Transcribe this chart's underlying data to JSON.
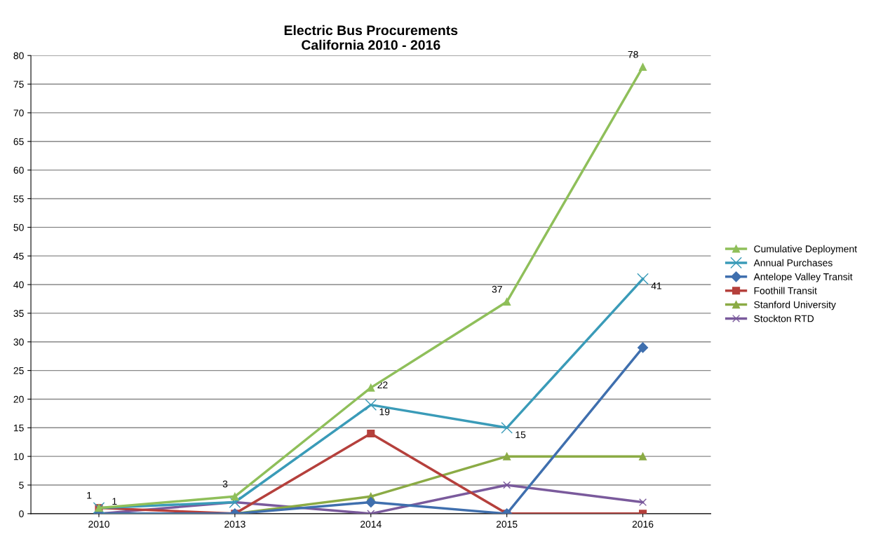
{
  "chart_data": {
    "type": "line",
    "title": "Electric Bus Procurements\nCalifornia 2010 - 2016",
    "categories": [
      "2010",
      "2013",
      "2014",
      "2015",
      "2016"
    ],
    "series": [
      {
        "name": "Cumulative Deployment",
        "color": "#8fbf5a",
        "marker": "triangle",
        "values": [
          1,
          3,
          22,
          37,
          78
        ],
        "value_labels": [
          "1",
          "3",
          "22",
          "37",
          "78"
        ]
      },
      {
        "name": "Annual Purchases",
        "color": "#3a9bb8",
        "marker": "cross",
        "values": [
          1,
          2,
          19,
          15,
          41
        ],
        "value_labels": [
          "1",
          null,
          "19",
          "15",
          "41"
        ]
      },
      {
        "name": "Antelope Valley Transit",
        "color": "#3f6fae",
        "marker": "diamond",
        "values": [
          0,
          0,
          2,
          0,
          29
        ]
      },
      {
        "name": "Foothill Transit",
        "color": "#b5403c",
        "marker": "square",
        "values": [
          1,
          0,
          14,
          0,
          0
        ]
      },
      {
        "name": "Stanford University",
        "color": "#8bab45",
        "marker": "triangle",
        "values": [
          0,
          0,
          3,
          10,
          10
        ]
      },
      {
        "name": "Stockton RTD",
        "color": "#7a5a9c",
        "marker": "cross",
        "values": [
          0,
          2,
          0,
          5,
          2
        ]
      }
    ],
    "ylim": [
      0,
      80
    ],
    "yticks": [
      0,
      5,
      10,
      15,
      20,
      25,
      30,
      35,
      40,
      45,
      50,
      55,
      60,
      65,
      70,
      75,
      80
    ],
    "grid": "y",
    "legend": "right"
  }
}
